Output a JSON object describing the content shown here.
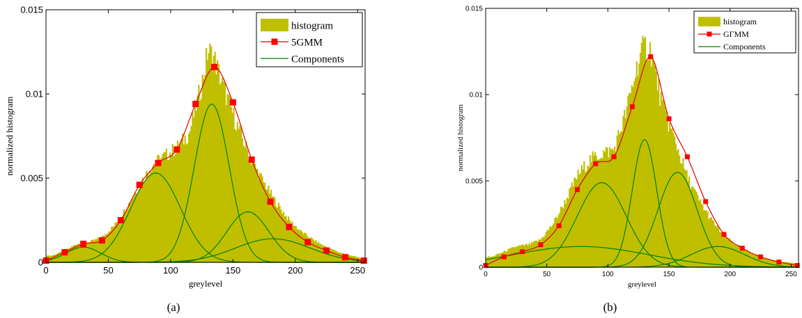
{
  "chart_data": [
    {
      "id": "a",
      "type": "bar",
      "caption": "(a)",
      "title": "",
      "xlabel": "greylevel",
      "ylabel": "normalized histogram",
      "xlim": [
        0,
        256
      ],
      "ylim": [
        0,
        0.015
      ],
      "xticks": [
        0,
        50,
        100,
        150,
        200,
        250
      ],
      "yticks": [
        0,
        0.005,
        0.01,
        0.015
      ],
      "ytick_labels": [
        "0",
        "0.005",
        "0.01",
        "0.015"
      ],
      "legend": {
        "position": "top-right",
        "entries": [
          "histogram",
          "5GMM",
          "Components"
        ]
      },
      "colors": {
        "histogram": "#bfbf00",
        "mixture": "#e00000",
        "marker": "#ff0000",
        "components": "#008000"
      },
      "series": [
        {
          "name": "histogram",
          "kind": "histogram",
          "x": [
            5,
            15,
            25,
            35,
            45,
            55,
            65,
            75,
            85,
            95,
            105,
            115,
            125,
            130,
            135,
            140,
            145,
            155,
            165,
            175,
            185,
            195,
            205,
            215,
            225,
            235,
            245,
            255
          ],
          "y": [
            0.0004,
            0.0007,
            0.0011,
            0.0012,
            0.0015,
            0.0022,
            0.0033,
            0.0046,
            0.0058,
            0.0063,
            0.0068,
            0.0077,
            0.0106,
            0.0126,
            0.0121,
            0.0109,
            0.0098,
            0.0078,
            0.006,
            0.0047,
            0.0035,
            0.0025,
            0.0018,
            0.0013,
            0.0009,
            0.0006,
            0.0004,
            0.0002
          ]
        },
        {
          "name": "5GMM",
          "kind": "mixture",
          "x": [
            0,
            15,
            30,
            45,
            60,
            75,
            90,
            105,
            120,
            135,
            150,
            165,
            180,
            195,
            210,
            225,
            240,
            255
          ],
          "y": [
            0.0001,
            0.0006,
            0.0011,
            0.0013,
            0.0025,
            0.0046,
            0.0059,
            0.0067,
            0.0094,
            0.0116,
            0.0095,
            0.0061,
            0.0036,
            0.0021,
            0.0012,
            0.0007,
            0.0003,
            0.0001
          ]
        },
        {
          "name": "Components",
          "kind": "components",
          "gaussians": [
            {
              "mean": 30,
              "sd": 14,
              "peak": 0.0009
            },
            {
              "mean": 88,
              "sd": 20,
              "peak": 0.0053
            },
            {
              "mean": 133,
              "sd": 14,
              "peak": 0.0094
            },
            {
              "mean": 162,
              "sd": 17,
              "peak": 0.003
            },
            {
              "mean": 182,
              "sd": 30,
              "peak": 0.0014
            }
          ]
        }
      ]
    },
    {
      "id": "b",
      "type": "bar",
      "caption": "(b)",
      "title": "",
      "xlabel": "greylevel",
      "ylabel": "normalized histogram",
      "xlim": [
        0,
        256
      ],
      "ylim": [
        0,
        0.015
      ],
      "xticks": [
        0,
        50,
        100,
        150,
        200,
        250
      ],
      "yticks": [
        0,
        0.005,
        0.01,
        0.015
      ],
      "ytick_labels": [
        "0",
        "0.005",
        "0.01",
        "0.015"
      ],
      "legend": {
        "position": "top-right",
        "entries": [
          "histogram",
          "GΓMM",
          "Components"
        ]
      },
      "colors": {
        "histogram": "#bfbf00",
        "mixture": "#e00000",
        "marker": "#ff0000",
        "components": "#008000"
      },
      "series": [
        {
          "name": "histogram",
          "kind": "histogram",
          "x": [
            5,
            15,
            25,
            35,
            45,
            55,
            65,
            75,
            85,
            95,
            105,
            115,
            125,
            130,
            135,
            140,
            145,
            155,
            165,
            175,
            185,
            195,
            205,
            215,
            225,
            235,
            245,
            255
          ],
          "y": [
            0.0006,
            0.0009,
            0.0012,
            0.0013,
            0.0016,
            0.0025,
            0.0038,
            0.0053,
            0.0062,
            0.0066,
            0.0068,
            0.009,
            0.012,
            0.0128,
            0.0126,
            0.0108,
            0.0092,
            0.0073,
            0.0052,
            0.0038,
            0.0027,
            0.0018,
            0.0013,
            0.0009,
            0.0006,
            0.0004,
            0.0003,
            0.0002
          ]
        },
        {
          "name": "GΓMM",
          "kind": "mixture",
          "x": [
            0,
            15,
            30,
            45,
            60,
            75,
            90,
            105,
            120,
            135,
            150,
            165,
            180,
            195,
            210,
            225,
            240,
            255
          ],
          "y": [
            0.0001,
            0.0006,
            0.0009,
            0.0013,
            0.0024,
            0.0045,
            0.006,
            0.0064,
            0.0093,
            0.0122,
            0.0086,
            0.0064,
            0.0038,
            0.0019,
            0.0011,
            0.0006,
            0.0003,
            0.0001
          ]
        },
        {
          "name": "Components",
          "kind": "components",
          "gaussians": [
            {
              "mean": 78,
              "sd": 55,
              "peak": 0.0012
            },
            {
              "mean": 95,
              "sd": 20,
              "peak": 0.0049
            },
            {
              "mean": 130,
              "sd": 10,
              "peak": 0.0074
            },
            {
              "mean": 157,
              "sd": 16,
              "peak": 0.0055
            },
            {
              "mean": 190,
              "sd": 22,
              "peak": 0.0012
            }
          ]
        }
      ]
    }
  ]
}
